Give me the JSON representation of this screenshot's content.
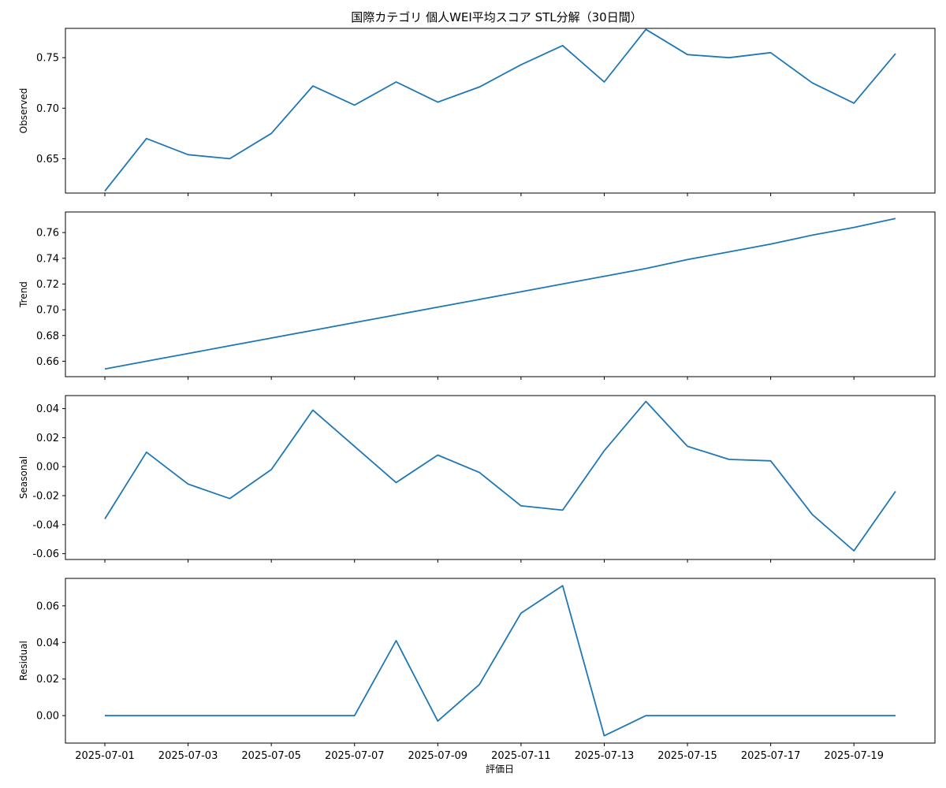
{
  "chart_data": {
    "type": "line",
    "title": "国際カテゴリ 個人WEI平均スコア STL分解（30日間）",
    "xlabel": "評価日",
    "x": [
      "2025-07-01",
      "2025-07-02",
      "2025-07-03",
      "2025-07-04",
      "2025-07-05",
      "2025-07-06",
      "2025-07-07",
      "2025-07-08",
      "2025-07-09",
      "2025-07-10",
      "2025-07-11",
      "2025-07-12",
      "2025-07-13",
      "2025-07-14",
      "2025-07-15",
      "2025-07-16",
      "2025-07-17",
      "2025-07-18",
      "2025-07-19",
      "2025-07-20"
    ],
    "xticks": [
      "2025-07-01",
      "2025-07-03",
      "2025-07-05",
      "2025-07-07",
      "2025-07-09",
      "2025-07-11",
      "2025-07-13",
      "2025-07-15",
      "2025-07-17",
      "2025-07-19"
    ],
    "line_color": "#1f77b4",
    "panels": [
      {
        "name": "observed",
        "ylabel": "Observed",
        "ylim": [
          0.616,
          0.779
        ],
        "yticks": [
          0.65,
          0.7,
          0.75
        ],
        "tick_decimals": 2,
        "values": [
          0.618,
          0.67,
          0.654,
          0.65,
          0.675,
          0.722,
          0.703,
          0.726,
          0.706,
          0.721,
          0.743,
          0.762,
          0.726,
          0.778,
          0.753,
          0.75,
          0.755,
          0.725,
          0.705,
          0.754
        ]
      },
      {
        "name": "trend",
        "ylabel": "Trend",
        "ylim": [
          0.648,
          0.776
        ],
        "yticks": [
          0.66,
          0.68,
          0.7,
          0.72,
          0.74,
          0.76
        ],
        "tick_decimals": 2,
        "values": [
          0.654,
          0.66,
          0.666,
          0.672,
          0.678,
          0.684,
          0.69,
          0.696,
          0.702,
          0.708,
          0.714,
          0.72,
          0.726,
          0.732,
          0.739,
          0.745,
          0.751,
          0.758,
          0.764,
          0.771
        ]
      },
      {
        "name": "seasonal",
        "ylabel": "Seasonal",
        "ylim": [
          -0.064,
          0.049
        ],
        "yticks": [
          -0.06,
          -0.04,
          -0.02,
          0.0,
          0.02,
          0.04
        ],
        "tick_decimals": 2,
        "values": [
          -0.036,
          0.01,
          -0.012,
          -0.022,
          -0.002,
          0.039,
          0.014,
          -0.011,
          0.008,
          -0.004,
          -0.027,
          -0.03,
          0.011,
          0.045,
          0.014,
          0.005,
          0.004,
          -0.033,
          -0.058,
          -0.017
        ]
      },
      {
        "name": "residual",
        "ylabel": "Residual",
        "ylim": [
          -0.015,
          0.075
        ],
        "yticks": [
          0.0,
          0.02,
          0.04,
          0.06
        ],
        "tick_decimals": 2,
        "values": [
          0.0,
          0.0,
          0.0,
          0.0,
          0.0,
          0.0,
          0.0,
          0.041,
          -0.003,
          0.017,
          0.056,
          0.071,
          -0.011,
          0.0,
          0.0,
          0.0,
          0.0,
          0.0,
          0.0,
          0.0
        ]
      }
    ]
  }
}
